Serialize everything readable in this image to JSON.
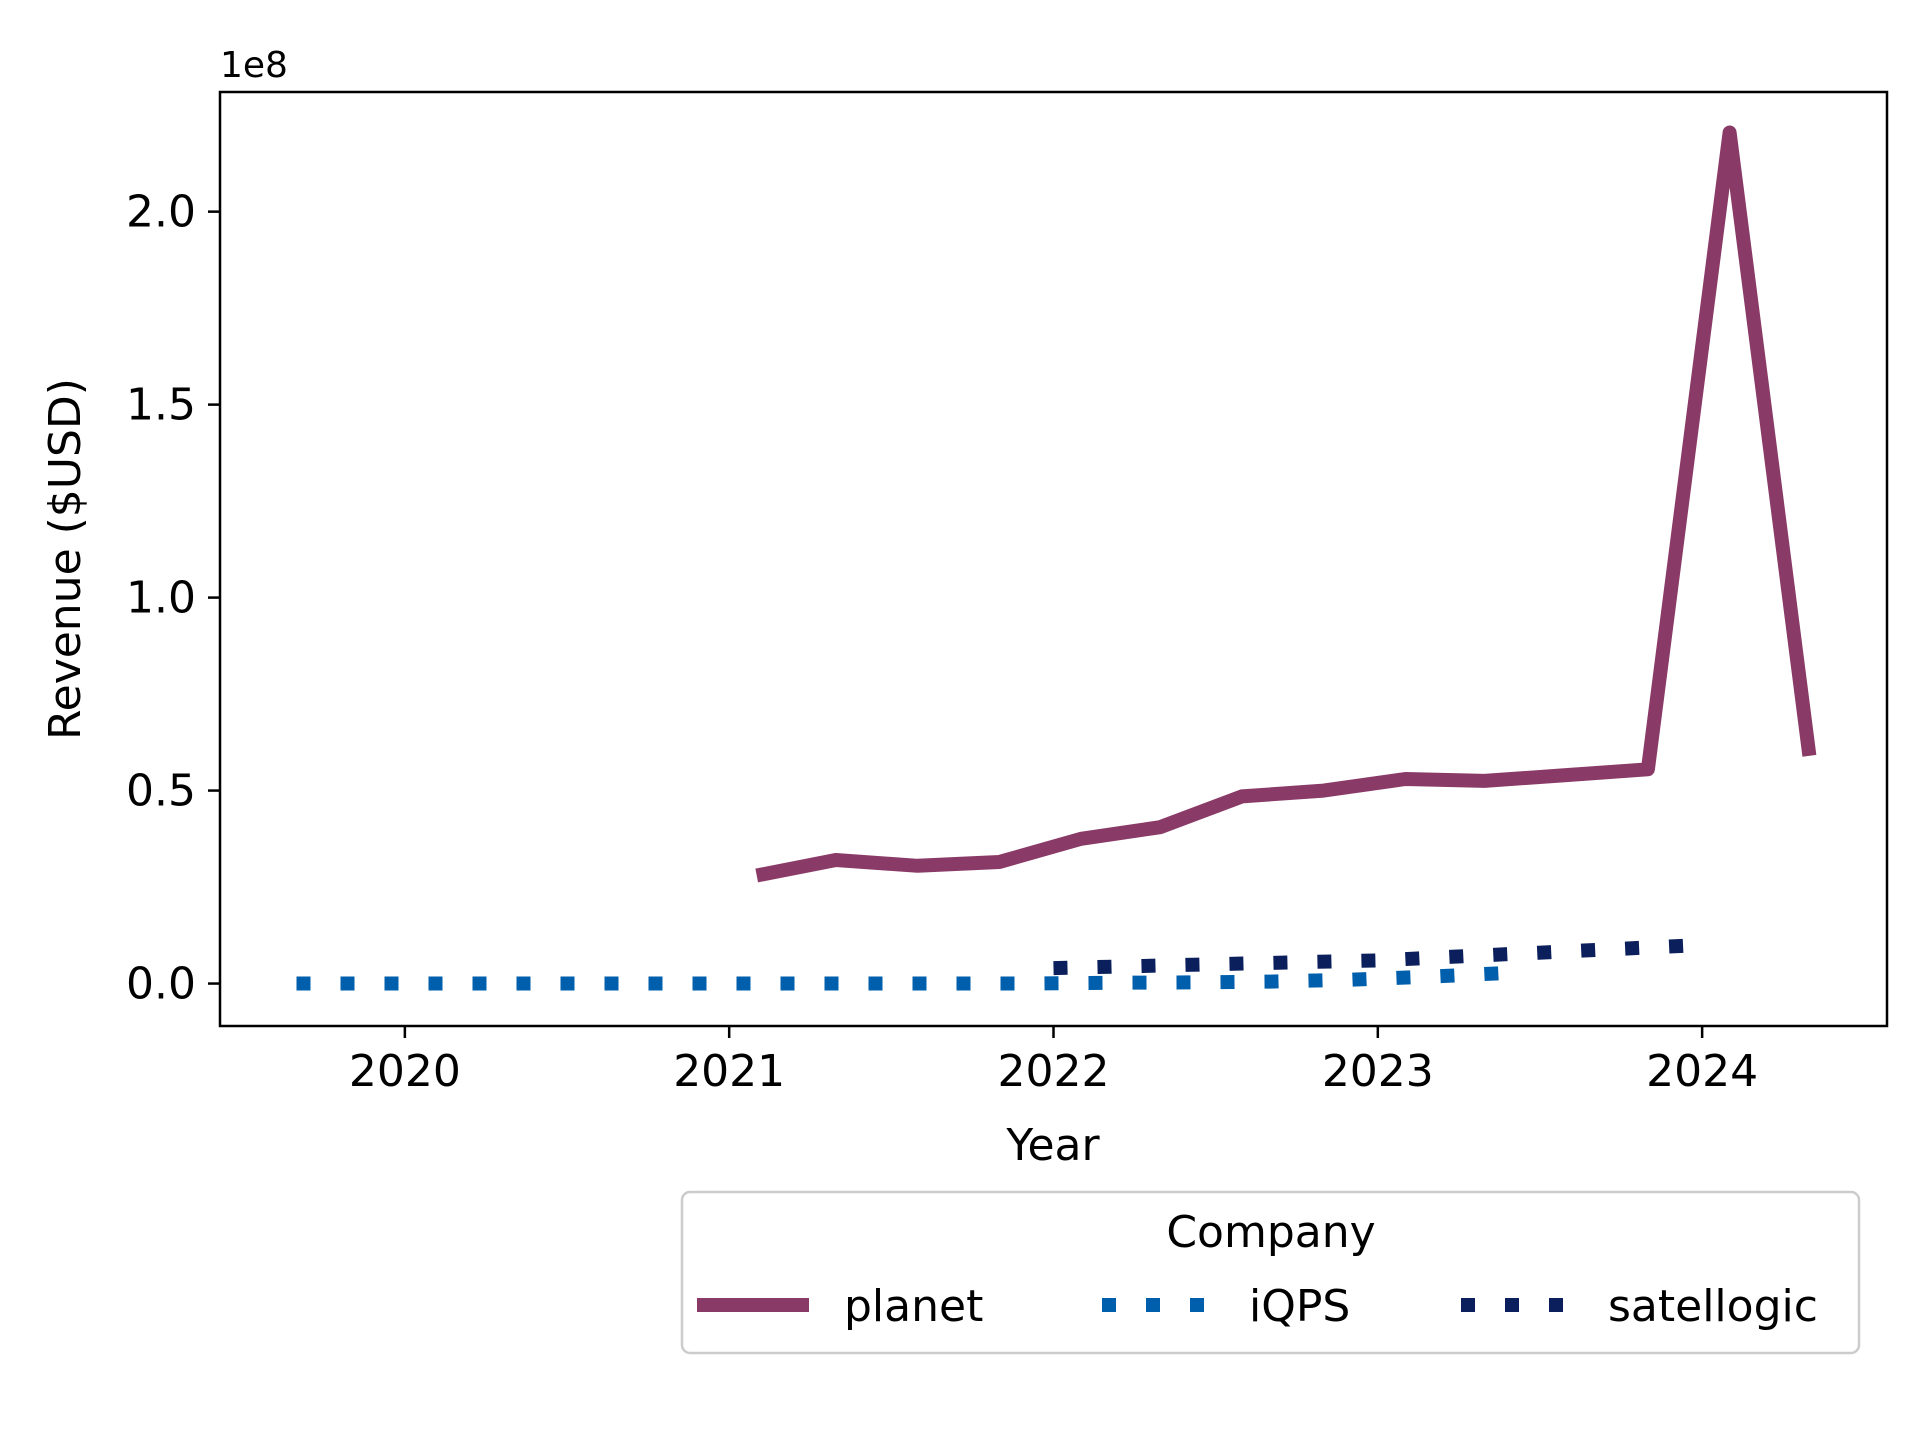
{
  "chart_data": {
    "type": "line",
    "xlabel": "Year",
    "ylabel": "Revenue ($USD)",
    "y_offset_label": "1e8",
    "xlim": [
      2019.43,
      2024.57
    ],
    "ylim": [
      -11000000,
      231000000
    ],
    "x_ticks": [
      2020,
      2021,
      2022,
      2023,
      2024
    ],
    "x_tick_labels": [
      "2020",
      "2021",
      "2022",
      "2023",
      "2024"
    ],
    "y_ticks": [
      0,
      50000000,
      100000000,
      150000000,
      200000000
    ],
    "y_tick_labels": [
      "0.0",
      "0.5",
      "1.0",
      "1.5",
      "2.0"
    ],
    "grid": false,
    "legend": {
      "title": "Company",
      "placement": "below-right",
      "columns": 3
    },
    "series": [
      {
        "name": "planet",
        "color": "#8a3a66",
        "style": "solid",
        "x": [
          "2021-02-01",
          "2021-05-01",
          "2021-08-01",
          "2021-11-01",
          "2022-02-01",
          "2022-05-01",
          "2022-08-01",
          "2022-11-01",
          "2023-02-01",
          "2023-05-01",
          "2023-08-01",
          "2023-11-01",
          "2024-02-01",
          "2024-05-01"
        ],
        "values": [
          28000000,
          32000000,
          30500000,
          31500000,
          37500000,
          40500000,
          48500000,
          50000000,
          53000000,
          52500000,
          54000000,
          55500000,
          220500000,
          59000000
        ]
      },
      {
        "name": "iQPS",
        "color": "#005fac",
        "style": "dotted",
        "x": [
          "2019-09-01",
          "2019-12-01",
          "2020-03-01",
          "2020-06-01",
          "2020-09-01",
          "2020-12-01",
          "2021-03-01",
          "2021-06-01",
          "2021-09-01",
          "2021-12-01",
          "2022-03-01",
          "2022-06-01",
          "2022-09-01",
          "2022-12-01",
          "2023-03-01",
          "2023-06-01"
        ],
        "values": [
          0,
          0,
          0,
          0,
          0,
          0,
          0,
          0,
          0,
          0,
          200000,
          300000,
          500000,
          1000000,
          1800000,
          2800000
        ]
      },
      {
        "name": "satellogic",
        "color": "#0b1f5c",
        "style": "dotted",
        "x": [
          "2022-01-01",
          "2022-04-01",
          "2022-07-01",
          "2022-10-01",
          "2023-01-01",
          "2023-04-01",
          "2023-07-01",
          "2023-10-01",
          "2024-01-01"
        ],
        "values": [
          4000000,
          4500000,
          5000000,
          5500000,
          6000000,
          7000000,
          8000000,
          9000000,
          10000000
        ]
      }
    ]
  }
}
